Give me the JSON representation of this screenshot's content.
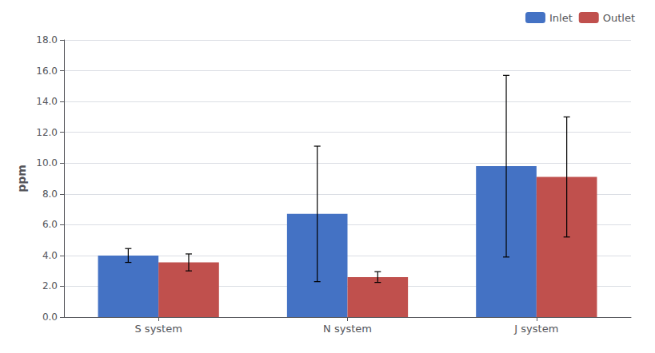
{
  "chart_data": {
    "type": "bar",
    "categories": [
      "S system",
      "N system",
      "J system"
    ],
    "series": [
      {
        "name": "Inlet",
        "color": "#4472C4",
        "values": [
          4.0,
          6.7,
          9.8
        ],
        "errors": [
          0.45,
          4.4,
          5.9
        ]
      },
      {
        "name": "Outlet",
        "color": "#C0504D",
        "values": [
          3.55,
          2.6,
          9.1
        ],
        "errors": [
          0.55,
          0.35,
          3.9
        ]
      }
    ],
    "ylabel": "ppm",
    "ylim": [
      0,
      18.0
    ],
    "yticks": [
      {
        "value": 0.0,
        "label": "0.0"
      },
      {
        "value": 2.0,
        "label": "2.0"
      },
      {
        "value": 4.0,
        "label": "4.0"
      },
      {
        "value": 6.0,
        "label": "6.0"
      },
      {
        "value": 8.0,
        "label": "8.0"
      },
      {
        "value": 10.0,
        "label": "10.0"
      },
      {
        "value": 12.0,
        "label": "12.0"
      },
      {
        "value": 14.0,
        "label": "14.0"
      },
      {
        "value": 16.0,
        "label": "16.0"
      },
      {
        "value": 18.0,
        "label": "18.0"
      }
    ],
    "grid": true,
    "legend": "upper right"
  }
}
